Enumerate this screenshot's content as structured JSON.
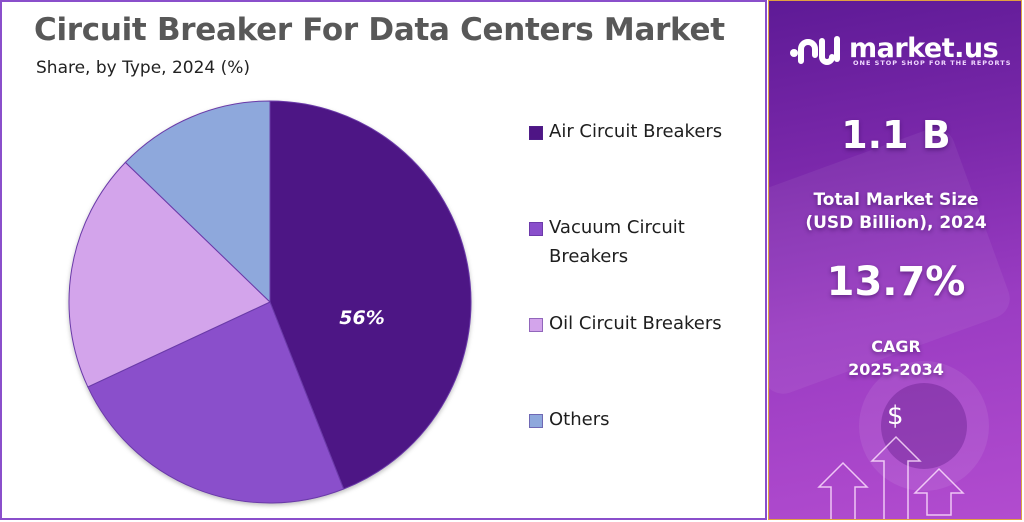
{
  "header": {
    "title": "Circuit Breaker For Data Centers Market",
    "subtitle": "Share, by Type, 2024 (%)"
  },
  "legend": [
    {
      "label": "Air Circuit Breakers",
      "color": "#4e1585"
    },
    {
      "label": "Vacuum Circuit Breakers",
      "color": "#8a4fcb"
    },
    {
      "label": "Oil Circuit Breakers",
      "color": "#d3a4eb"
    },
    {
      "label": "Others",
      "color": "#8ea8dc"
    }
  ],
  "pie_label": "56%",
  "side_panel": {
    "brand": "market.us",
    "tagline": "ONE STOP SHOP FOR THE REPORTS",
    "market_size_value": "1.1 B",
    "market_size_label_line1": "Total Market Size",
    "market_size_label_line2": "(USD Billion), 2024",
    "cagr_value": "13.7%",
    "cagr_label_line1": "CAGR",
    "cagr_label_line2": "2025-2034",
    "dollar_icon": "$"
  },
  "chart_data": {
    "type": "pie",
    "title": "Circuit Breaker For Data Centers Market",
    "subtitle": "Share, by Type, 2024 (%)",
    "categories": [
      "Air Circuit Breakers",
      "Vacuum Circuit Breakers",
      "Oil Circuit Breakers",
      "Others"
    ],
    "values": [
      56,
      24,
      19,
      13
    ],
    "labeled_values": {
      "Air Circuit Breakers": "56%"
    },
    "colors": [
      "#4e1585",
      "#8a4fcb",
      "#d3a4eb",
      "#8ea8dc"
    ],
    "legend_position": "right",
    "start_angle": "12 o'clock, clockwise"
  }
}
